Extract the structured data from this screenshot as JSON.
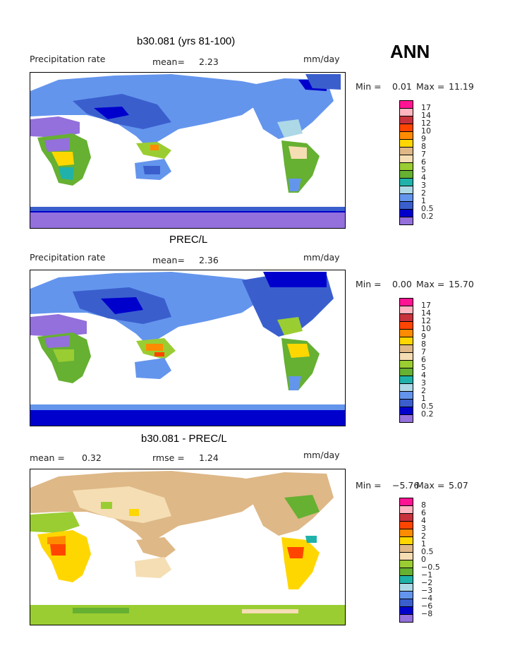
{
  "season": "ANN",
  "panels": [
    {
      "title": "b30.081 (yrs 81-100)",
      "left_label": "Precipitation rate",
      "mean_text": "mean=",
      "mean_value": "2.23",
      "mid_label": "",
      "mid_value": "",
      "units": "mm/day",
      "min_text": "Min =",
      "min_value": "0.01",
      "max_text": "Max =",
      "max_value": "11.19"
    },
    {
      "title": "PREC/L",
      "left_label": "Precipitation rate",
      "mean_text": "mean=",
      "mean_value": "2.36",
      "units": "mm/day",
      "min_text": "Min =",
      "min_value": "0.00",
      "max_text": "Max =",
      "max_value": "15.70"
    },
    {
      "title": "b30.081 - PREC/L",
      "left_label": "mean =",
      "left_value": "0.32",
      "rmse_text": "rmse =",
      "rmse_value": "1.24",
      "units": "mm/day",
      "min_text": "Min =",
      "min_value": "−5.76",
      "max_text": "Max =",
      "max_value": "5.07"
    }
  ],
  "colorbar_abs": {
    "labels": [
      "17",
      "14",
      "12",
      "10",
      "9",
      "8",
      "7",
      "6",
      "5",
      "4",
      "3",
      "2",
      "1",
      "0.5",
      "0.2"
    ],
    "colors": [
      "#ff1493",
      "#ffb6c1",
      "#c8323c",
      "#ff4500",
      "#ff8c00",
      "#ffd700",
      "#deb887",
      "#f5deb3",
      "#9acd32",
      "#66b032",
      "#20b2aa",
      "#add8e6",
      "#6495ed",
      "#3a5fcd",
      "#0000cd",
      "#9370db"
    ]
  },
  "colorbar_diff": {
    "labels": [
      "8",
      "6",
      "4",
      "3",
      "2",
      "1",
      "0.5",
      "0",
      "−0.5",
      "−1",
      "−2",
      "−3",
      "−4",
      "−6",
      "−8"
    ],
    "colors": [
      "#ff1493",
      "#ffb6c1",
      "#c8323c",
      "#ff4500",
      "#ff8c00",
      "#ffd700",
      "#deb887",
      "#f5deb3",
      "#9acd32",
      "#66b032",
      "#20b2aa",
      "#add8e6",
      "#6495ed",
      "#3a5fcd",
      "#0000cd",
      "#9370db"
    ]
  },
  "chart_data": [
    {
      "type": "heatmap",
      "title": "b30.081 (yrs 81-100)",
      "subtitle": "Precipitation rate",
      "units": "mm/day",
      "mean": 2.23,
      "min": 0.01,
      "max": 11.19,
      "contour_levels": [
        0.2,
        0.5,
        1,
        2,
        3,
        4,
        5,
        6,
        7,
        8,
        9,
        10,
        12,
        14,
        17
      ]
    },
    {
      "type": "heatmap",
      "title": "PREC/L",
      "subtitle": "Precipitation rate",
      "units": "mm/day",
      "mean": 2.36,
      "min": 0.0,
      "max": 15.7,
      "contour_levels": [
        0.2,
        0.5,
        1,
        2,
        3,
        4,
        5,
        6,
        7,
        8,
        9,
        10,
        12,
        14,
        17
      ]
    },
    {
      "type": "heatmap",
      "title": "b30.081 - PREC/L",
      "units": "mm/day",
      "mean": 0.32,
      "rmse": 1.24,
      "min": -5.76,
      "max": 5.07,
      "contour_levels": [
        -8,
        -6,
        -4,
        -3,
        -2,
        -1,
        -0.5,
        0,
        0.5,
        1,
        2,
        3,
        4,
        6,
        8
      ]
    }
  ]
}
